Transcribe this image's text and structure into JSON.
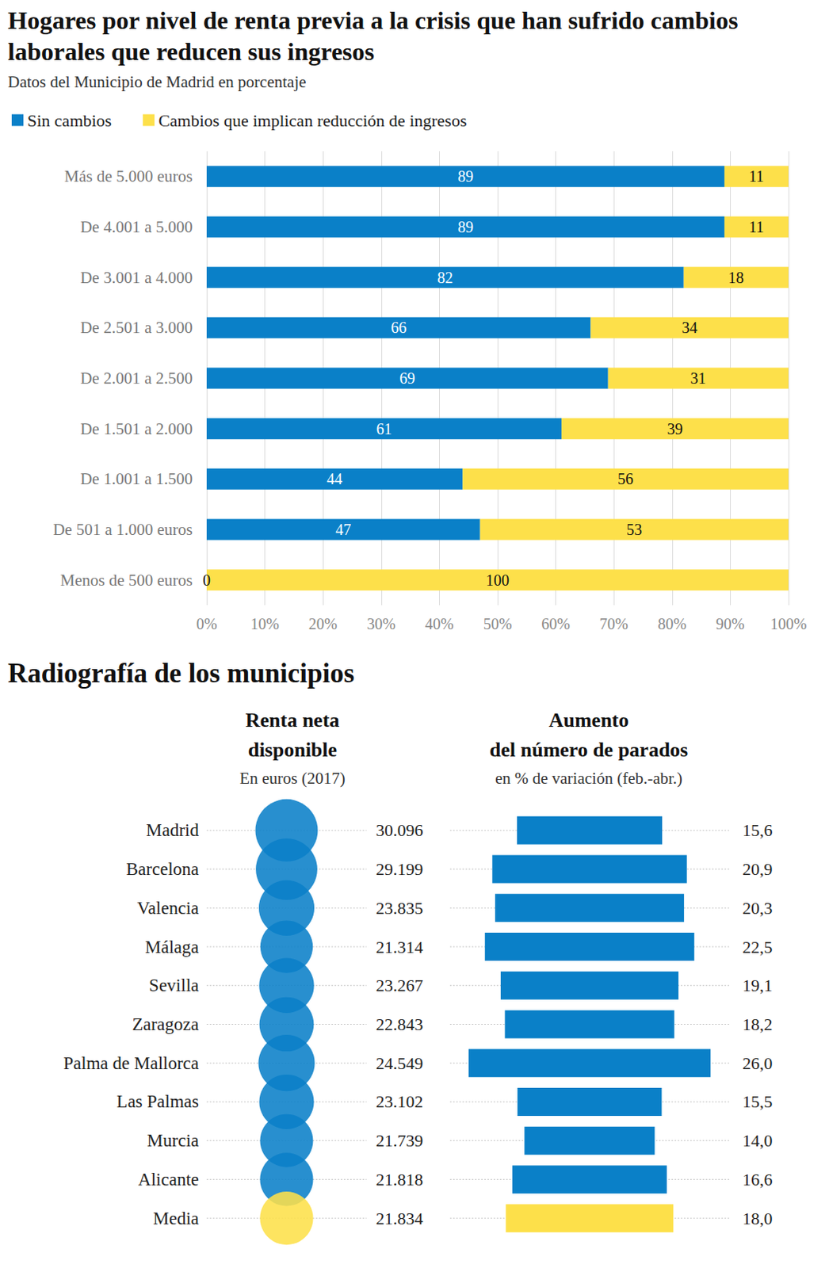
{
  "section_title": "Radiografía de los municipios",
  "chart_data": [
    {
      "type": "bar",
      "orientation": "horizontal",
      "stacked": true,
      "title": "Hogares por nivel de renta previa a la crisis que han sufrido cambios laborales que reducen sus ingresos",
      "subtitle": "Datos del Municipio de Madrid en porcentaje",
      "categories": [
        "Más de 5.000 euros",
        "De 4.001 a 5.000",
        "De 3.001 a 4.000",
        "De 2.501 a 3.000",
        "De 2.001 a 2.500",
        "De 1.501 a 2.000",
        "De 1.001 a 1.500",
        "De 501 a 1.000 euros",
        "Menos de 500 euros"
      ],
      "series": [
        {
          "name": "Sin cambios",
          "color": "#0a80c8",
          "values": [
            89,
            89,
            82,
            66,
            69,
            61,
            44,
            47,
            0
          ]
        },
        {
          "name": "Cambios que implican reducción de ingresos",
          "color": "#fde04a",
          "values": [
            11,
            11,
            18,
            34,
            31,
            39,
            56,
            53,
            100
          ]
        }
      ],
      "xlim": [
        0,
        100
      ],
      "xticks": [
        {
          "value": 0,
          "label": "0%"
        },
        {
          "value": 10,
          "label": "10%"
        },
        {
          "value": 20,
          "label": "20%"
        },
        {
          "value": 30,
          "label": "30%"
        },
        {
          "value": 40,
          "label": "40%"
        },
        {
          "value": 50,
          "label": "50%"
        },
        {
          "value": 60,
          "label": "60%"
        },
        {
          "value": 70,
          "label": "70%"
        },
        {
          "value": 80,
          "label": "80%"
        },
        {
          "value": 90,
          "label": "90%"
        },
        {
          "value": 100,
          "label": "100%"
        }
      ],
      "grid": true,
      "legend": "top-left",
      "data_labels": true
    },
    {
      "type": "bubble",
      "title": "Renta neta\ndisponible",
      "subtitle": "En euros (2017)",
      "categories": [
        "Madrid",
        "Barcelona",
        "Valencia",
        "Málaga",
        "Sevilla",
        "Zaragoza",
        "Palma de Mallorca",
        "Las Palmas",
        "Murcia",
        "Alicante",
        "Media"
      ],
      "values": [
        30096,
        29199,
        23835,
        21314,
        23267,
        22843,
        24549,
        23102,
        21739,
        21818,
        21834
      ],
      "value_labels": [
        "30.096",
        "29.199",
        "23.835",
        "21.314",
        "23.267",
        "22.843",
        "24.549",
        "23.102",
        "21.739",
        "21.818",
        "21.834"
      ],
      "colors": [
        "#0a80c8",
        "#0a80c8",
        "#0a80c8",
        "#0a80c8",
        "#0a80c8",
        "#0a80c8",
        "#0a80c8",
        "#0a80c8",
        "#0a80c8",
        "#0a80c8",
        "#fde04a"
      ],
      "data_labels": true,
      "tick_labels": "y"
    },
    {
      "type": "bar",
      "orientation": "horizontal",
      "title": "Aumento\ndel número de parados",
      "subtitle": "en % de variación (feb.-abr.)",
      "values": [
        15.6,
        20.9,
        20.3,
        22.5,
        19.1,
        18.2,
        26.0,
        15.5,
        14.0,
        16.6,
        18.0
      ],
      "value_labels": [
        "15,6",
        "20,9",
        "20,3",
        "22,5",
        "19,1",
        "18,2",
        "26,0",
        "15,5",
        "14,0",
        "16,6",
        "18,0"
      ],
      "colors": [
        "#0a80c8",
        "#0a80c8",
        "#0a80c8",
        "#0a80c8",
        "#0a80c8",
        "#0a80c8",
        "#0a80c8",
        "#0a80c8",
        "#0a80c8",
        "#0a80c8",
        "#fde04a"
      ],
      "data_labels": true,
      "tick_labels": false
    }
  ]
}
